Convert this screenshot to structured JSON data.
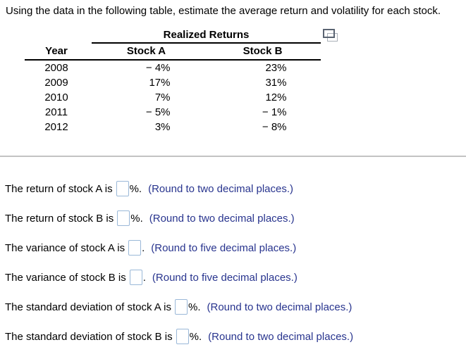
{
  "page": {
    "question": "Using the data in the following table, estimate the average return and volatility for each stock."
  },
  "table": {
    "group_header": "Realized Returns",
    "columns": {
      "year": "Year",
      "stock_a": "Stock A",
      "stock_b": "Stock B"
    },
    "rows": [
      {
        "year": "2008",
        "stock_a": "− 4%",
        "stock_b": "23%"
      },
      {
        "year": "2009",
        "stock_a": "17%",
        "stock_b": "31%"
      },
      {
        "year": "2010",
        "stock_a": "7%",
        "stock_b": "12%"
      },
      {
        "year": "2011",
        "stock_a": "− 5%",
        "stock_b": "− 1%"
      },
      {
        "year": "2012",
        "stock_a": "3%",
        "stock_b": "− 8%"
      }
    ],
    "popup_icon": "popup-table-icon"
  },
  "statements": [
    {
      "label": "The return of stock A is",
      "value": "",
      "suffix": "%.",
      "note": "(Round to two decimal places.)"
    },
    {
      "label": "The return of stock B is",
      "value": "",
      "suffix": "%.",
      "note": "(Round to two decimal places.)"
    },
    {
      "label": "The variance of stock A is",
      "value": "",
      "suffix": ".",
      "note": "(Round to five decimal places.)"
    },
    {
      "label": "The variance of stock B is",
      "value": "",
      "suffix": ".",
      "note": "(Round to five decimal places.)"
    },
    {
      "label": "The standard deviation of stock A is",
      "value": "",
      "suffix": "%.",
      "note": "(Round to two decimal places.)"
    },
    {
      "label": "The standard deviation of stock B is",
      "value": "",
      "suffix": "%.",
      "note": "(Round to two decimal places.)"
    }
  ],
  "colors": {
    "text": "#000000",
    "note_blue": "#28348e",
    "input_border": "#9ab8d8",
    "divider": "#c3c3c3",
    "table_line": "#000000",
    "icon_front": "#5a6472",
    "icon_back": "#aab0b8"
  }
}
